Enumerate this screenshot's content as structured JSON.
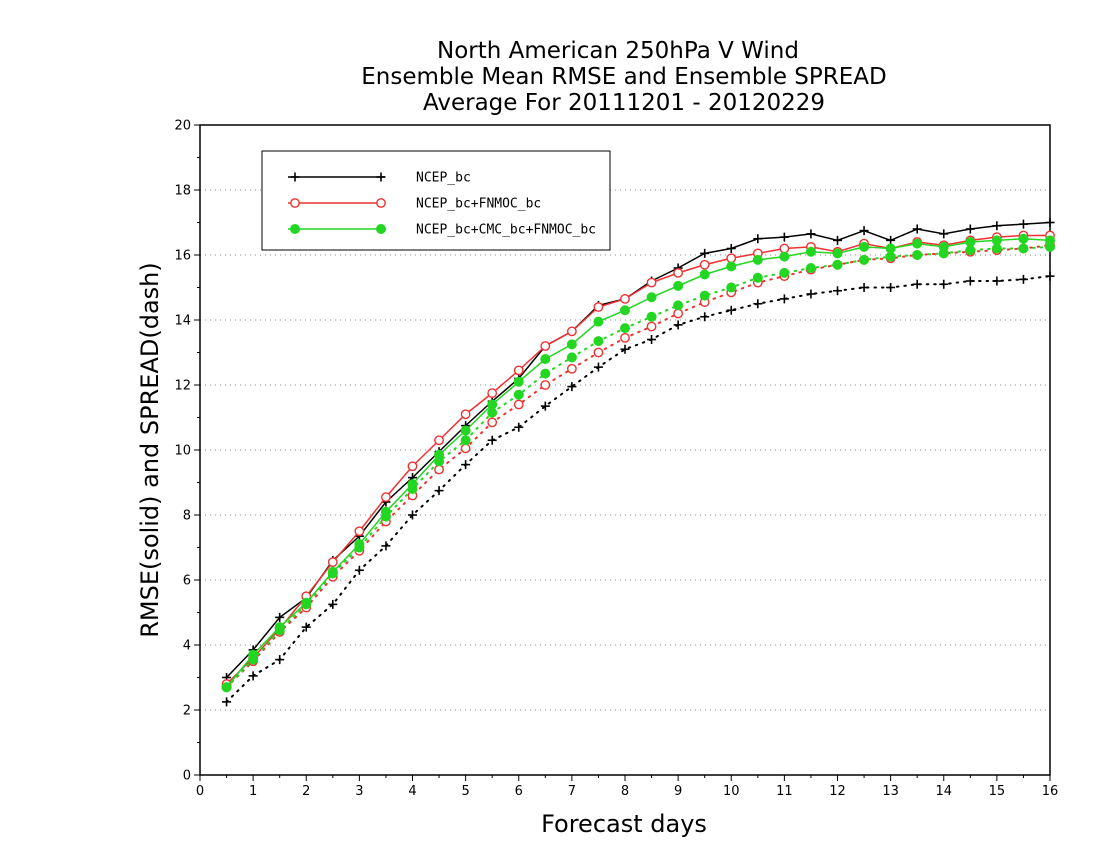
{
  "chart_data": {
    "type": "line",
    "title": [
      "North American 250hPa V Wind",
      "Ensemble Mean RMSE and Ensemble SPREAD",
      "Average For 20111201 - 20120229"
    ],
    "xlabel": "Forecast days",
    "ylabel": "RMSE(solid) and SPREAD(dash)",
    "xlim": [
      0,
      16
    ],
    "ylim": [
      0,
      20
    ],
    "xticks": [
      "0",
      "1",
      "2",
      "3",
      "4",
      "5",
      "6",
      "7",
      "8",
      "9",
      "10",
      "11",
      "12",
      "13",
      "14",
      "15",
      "16"
    ],
    "yticks": [
      "0",
      "2",
      "4",
      "6",
      "8",
      "10",
      "12",
      "14",
      "16",
      "18",
      "20"
    ],
    "grid": true,
    "legend_position": "top-left",
    "x": [
      0.5,
      1,
      1.5,
      2,
      2.5,
      3,
      3.5,
      4,
      4.5,
      5,
      5.5,
      6,
      6.5,
      7,
      7.5,
      8,
      8.5,
      9,
      9.5,
      10,
      10.5,
      11,
      11.5,
      12,
      12.5,
      13,
      13.5,
      14,
      14.5,
      15,
      15.5,
      16
    ],
    "series": [
      {
        "name": "NCEP_bc",
        "color": "#000000",
        "marker": "plus",
        "rmse": [
          3.0,
          3.85,
          4.85,
          5.45,
          6.6,
          7.35,
          8.4,
          9.15,
          9.95,
          10.75,
          11.5,
          12.2,
          13.2,
          13.65,
          14.45,
          14.65,
          15.2,
          15.6,
          16.05,
          16.2,
          16.5,
          16.55,
          16.65,
          16.45,
          16.75,
          16.45,
          16.8,
          16.65,
          16.8,
          16.9,
          16.95,
          17.0
        ],
        "spread": [
          2.25,
          3.05,
          3.55,
          4.55,
          5.25,
          6.3,
          7.05,
          8.0,
          8.75,
          9.55,
          10.3,
          10.7,
          11.35,
          11.95,
          12.55,
          13.1,
          13.4,
          13.85,
          14.1,
          14.3,
          14.5,
          14.65,
          14.8,
          14.9,
          15.0,
          15.0,
          15.1,
          15.1,
          15.2,
          15.2,
          15.25,
          15.35
        ]
      },
      {
        "name": "NCEP_bc+FNMOC_bc",
        "color": "#f03030",
        "marker": "open-circle",
        "rmse": [
          2.8,
          3.6,
          4.5,
          5.5,
          6.55,
          7.5,
          8.55,
          9.5,
          10.3,
          11.1,
          11.75,
          12.45,
          13.2,
          13.65,
          14.4,
          14.65,
          15.15,
          15.45,
          15.7,
          15.9,
          16.05,
          16.2,
          16.25,
          16.1,
          16.35,
          16.2,
          16.4,
          16.3,
          16.45,
          16.55,
          16.6,
          16.6
        ],
        "spread": [
          2.7,
          3.5,
          4.4,
          5.15,
          6.1,
          6.9,
          7.8,
          8.6,
          9.4,
          10.05,
          10.85,
          11.4,
          12.0,
          12.5,
          13.0,
          13.45,
          13.8,
          14.2,
          14.55,
          14.85,
          15.15,
          15.35,
          15.55,
          15.7,
          15.85,
          15.9,
          16.0,
          16.05,
          16.1,
          16.15,
          16.2,
          16.3
        ]
      },
      {
        "name": "NCEP_bc+CMC_bc+FNMOC_bc",
        "color": "#22d622",
        "marker": "filled-circle",
        "rmse": [
          2.7,
          3.7,
          4.55,
          5.3,
          6.25,
          7.1,
          8.1,
          8.95,
          9.85,
          10.6,
          11.4,
          12.1,
          12.8,
          13.25,
          13.95,
          14.3,
          14.7,
          15.05,
          15.4,
          15.65,
          15.85,
          15.95,
          16.1,
          16.05,
          16.25,
          16.2,
          16.35,
          16.25,
          16.4,
          16.45,
          16.5,
          16.45
        ],
        "spread": [
          2.7,
          3.55,
          4.45,
          5.25,
          6.2,
          7.0,
          7.95,
          8.8,
          9.65,
          10.3,
          11.15,
          11.7,
          12.35,
          12.85,
          13.35,
          13.75,
          14.1,
          14.45,
          14.75,
          15.0,
          15.3,
          15.45,
          15.6,
          15.7,
          15.85,
          15.95,
          16.0,
          16.05,
          16.15,
          16.2,
          16.2,
          16.25
        ]
      }
    ]
  }
}
